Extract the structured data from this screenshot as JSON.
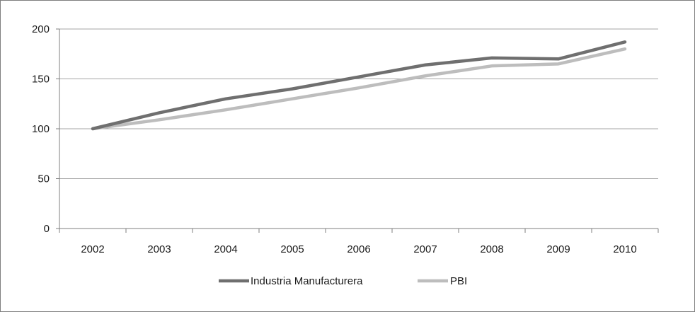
{
  "chart_data": {
    "type": "line",
    "title": "",
    "xlabel": "",
    "ylabel": "",
    "categories": [
      "2002",
      "2003",
      "2004",
      "2005",
      "2006",
      "2007",
      "2008",
      "2009",
      "2010"
    ],
    "ylim": [
      0,
      200
    ],
    "yticks": [
      0,
      50,
      100,
      150,
      200
    ],
    "grid": true,
    "legend_position": "bottom",
    "series": [
      {
        "name": "Industria Manufacturera",
        "color": "#6f6f6f",
        "values": [
          100,
          116,
          130,
          140,
          152,
          164,
          171,
          170,
          187
        ]
      },
      {
        "name": "PBI",
        "color": "#bdbdbd",
        "values": [
          100,
          109,
          119,
          130,
          141,
          153,
          163,
          165,
          180
        ]
      }
    ]
  }
}
